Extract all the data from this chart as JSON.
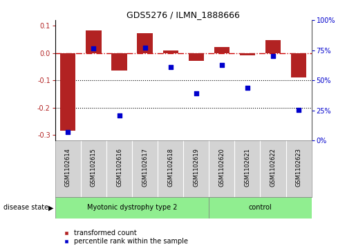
{
  "title": "GDS5276 / ILMN_1888666",
  "samples": [
    "GSM1102614",
    "GSM1102615",
    "GSM1102616",
    "GSM1102617",
    "GSM1102618",
    "GSM1102619",
    "GSM1102620",
    "GSM1102621",
    "GSM1102622",
    "GSM1102623"
  ],
  "red_values": [
    -0.285,
    0.082,
    -0.065,
    0.072,
    0.01,
    -0.028,
    0.022,
    -0.008,
    0.048,
    -0.09
  ],
  "blue_values": [
    3,
    79,
    18,
    80,
    62,
    38,
    64,
    43,
    72,
    23
  ],
  "disease_groups": [
    {
      "label": "Myotonic dystrophy type 2",
      "start": 0,
      "end": 6
    },
    {
      "label": "control",
      "start": 6,
      "end": 10
    }
  ],
  "ylim_left": [
    -0.32,
    0.12
  ],
  "ylim_right": [
    0,
    100
  ],
  "left_ticks": [
    0.1,
    0.0,
    -0.1,
    -0.2,
    -0.3
  ],
  "right_ticks": [
    100,
    75,
    50,
    25,
    0
  ],
  "red_color": "#b22222",
  "blue_color": "#0000cc",
  "hline_color": "#cc0000",
  "bg_color": "#ffffff",
  "legend_red_label": "transformed count",
  "legend_blue_label": "percentile rank within the sample",
  "disease_state_label": "disease state",
  "bar_width": 0.6,
  "label_bg_color": "#d3d3d3",
  "disease_green": "#90ee90"
}
